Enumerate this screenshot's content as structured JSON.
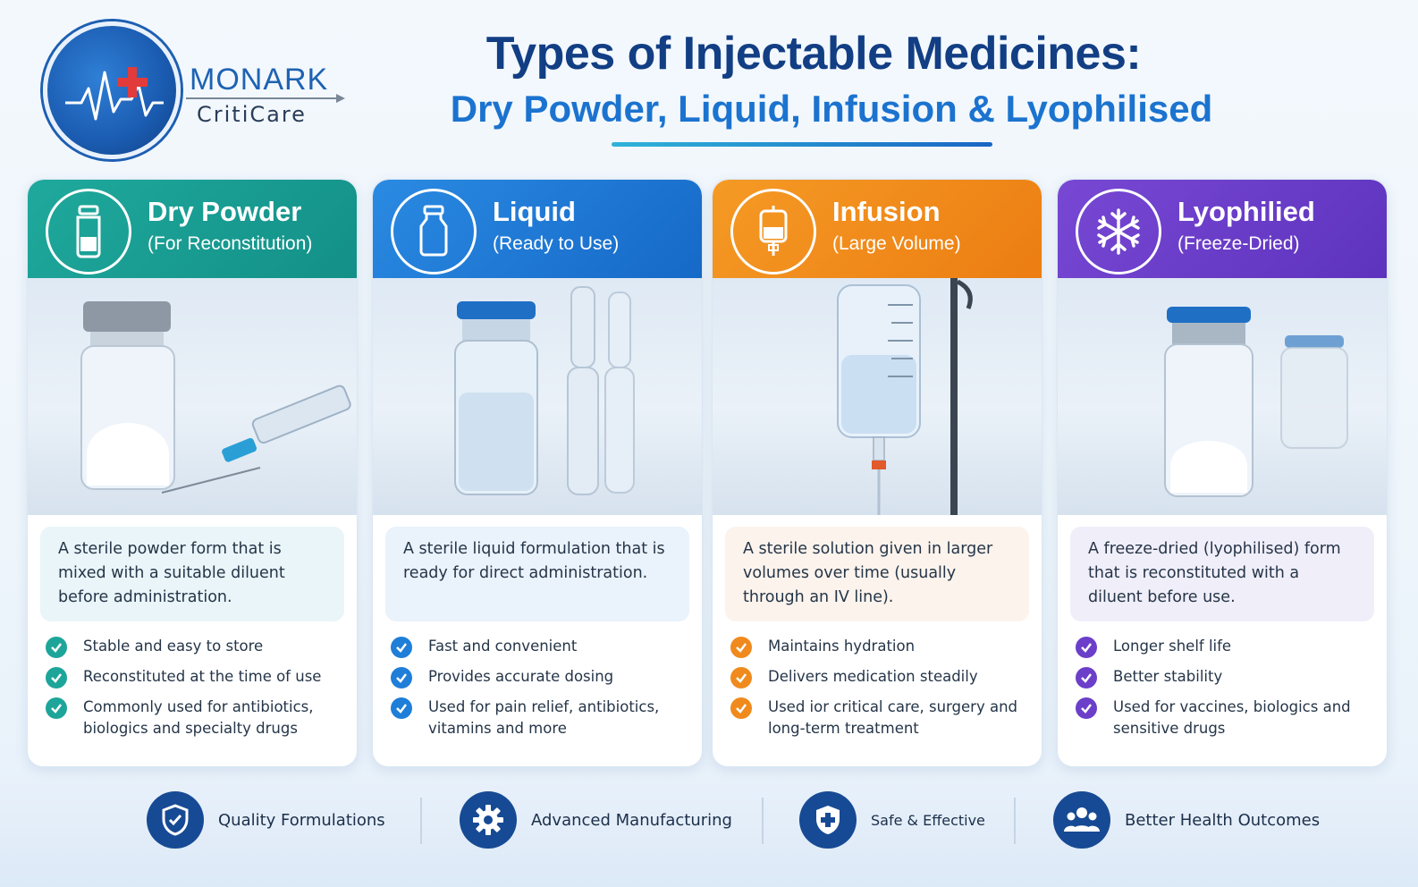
{
  "brand": {
    "name": "MONARK",
    "sub": "CritiCare"
  },
  "header": {
    "title": "Types of Injectable Medicines:",
    "subtitle": "Dry Powder, Liquid, Infusion & Lyophilised"
  },
  "colors": {
    "dry_powder": "#1ea59a",
    "liquid": "#1f7ed8",
    "infusion": "#f08a1c",
    "lyophilised": "#6b3fc9",
    "navy": "#123e84"
  },
  "cards": [
    {
      "title": "Dry Powder",
      "subtitle": "(For Reconstitution)",
      "icon": "vial-icon",
      "description": "A sterile powder form that is mixed with a suitable diluent before administration.",
      "bullets": [
        "Stable and easy to store",
        "Reconstituted at the time of use",
        "Commonly used for antibiotics, biologics and specialty drugs"
      ]
    },
    {
      "title": "Liquid",
      "subtitle": "(Ready to Use)",
      "icon": "bottle-icon",
      "description": "A sterile liquid formulation that is ready for direct administration.",
      "bullets": [
        "Fast and convenient",
        "Provides accurate dosing",
        "Used for pain relief, antibiotics, vitamins and more"
      ]
    },
    {
      "title": "Infusion",
      "subtitle": "(Large Volume)",
      "icon": "iv-bag-icon",
      "description": "A sterile solution given in larger volumes over time (usually through an IV line).",
      "bullets": [
        "Maintains hydration",
        "Delivers medication steadily",
        "Used ior critical care, surgery and long-term treatment"
      ]
    },
    {
      "title": "Lyophilied",
      "subtitle": "(Freeze-Dried)",
      "icon": "snowflake-icon",
      "description": "A freeze-dried (lyophilised) form that is reconstituted with a diluent before use.",
      "bullets": [
        "Longer shelf life",
        "Better stability",
        "Used for vaccines, biologics and sensitive drugs"
      ]
    }
  ],
  "features": [
    {
      "label": "Quality Formulations",
      "icon": "shield-check-icon"
    },
    {
      "label": "Advanced Manufacturing",
      "icon": "gear-icon"
    },
    {
      "label": "Safe & Effective",
      "icon": "shield-cross-icon"
    },
    {
      "label": "Better Health Outcomes",
      "icon": "people-icon"
    }
  ]
}
